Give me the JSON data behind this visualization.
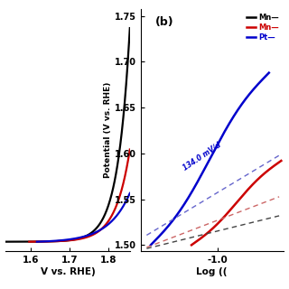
{
  "panel_a": {
    "xlim": [
      1.535,
      1.855
    ],
    "ylim": [
      -0.002,
      0.048
    ],
    "xlabel": "V vs. RHE)",
    "xticks": [
      1.6,
      1.7,
      1.8
    ],
    "xtick_labels": [
      "1.6",
      "1.7",
      "1.8"
    ]
  },
  "panel_b": {
    "xlim": [
      -1.38,
      -0.68
    ],
    "ylim": [
      1.493,
      1.758
    ],
    "xlabel": "Log ((",
    "ylabel": "Potential (V vs. RHE)",
    "yticks": [
      1.5,
      1.55,
      1.6,
      1.65,
      1.7,
      1.75
    ],
    "ytick_labels": [
      "1.50",
      "1.55",
      "1.60",
      "1.65",
      "1.70",
      "1.75"
    ],
    "xticks": [
      -1.0
    ],
    "xtick_labels": [
      "-1.0"
    ],
    "label": "(b)",
    "tafel_annotation": "134.0 mV/d",
    "legend_labels": [
      "Mn—",
      "Mn—",
      "Pt—"
    ],
    "legend_colors": [
      "#000000",
      "#cc0000",
      "#0000cc"
    ]
  },
  "colors": {
    "black": "#000000",
    "red": "#cc0000",
    "blue": "#0000cc",
    "black_dash": "#444444",
    "red_dash": "#cc6666",
    "blue_dash": "#6666cc"
  },
  "background": "#ffffff"
}
